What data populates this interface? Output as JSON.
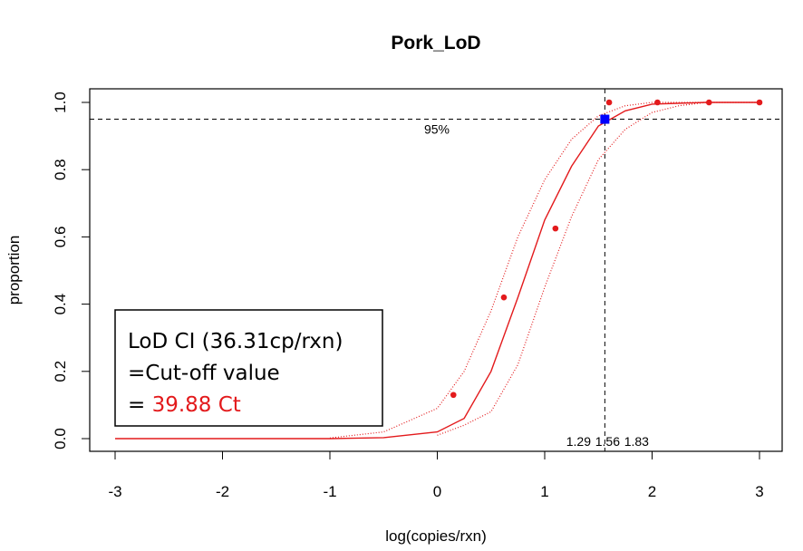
{
  "chart_data": {
    "type": "line",
    "title": "Pork_LoD",
    "xlabel": "log(copies/rxn)",
    "ylabel": "proportion",
    "xlim": [
      -3,
      3
    ],
    "ylim": [
      0,
      1
    ],
    "xticks": [
      "-3",
      "-2",
      "-1",
      "0",
      "1",
      "2",
      "3"
    ],
    "yticks": [
      "0.0",
      "0.2",
      "0.4",
      "0.6",
      "0.8",
      "1.0"
    ],
    "series": [
      {
        "style": "solid",
        "color": "#e31a1c",
        "x": [
          -3.0,
          -1.0,
          -0.5,
          0.0,
          0.25,
          0.5,
          0.75,
          1.0,
          1.25,
          1.5,
          1.75,
          2.0,
          2.5,
          3.0
        ],
        "y": [
          0.0,
          0.0,
          0.003,
          0.02,
          0.06,
          0.2,
          0.42,
          0.65,
          0.81,
          0.93,
          0.975,
          0.995,
          1.0,
          1.0
        ]
      },
      {
        "style": "dotted",
        "color": "#e31a1c",
        "x": [
          -1.0,
          -0.5,
          0.0,
          0.25,
          0.5,
          0.75,
          1.0,
          1.25,
          1.5,
          1.75,
          2.0,
          2.5,
          3.0
        ],
        "y": [
          0.002,
          0.02,
          0.09,
          0.2,
          0.38,
          0.6,
          0.77,
          0.89,
          0.96,
          0.99,
          1.0,
          1.0,
          1.0
        ]
      },
      {
        "style": "dotted",
        "color": "#e31a1c",
        "x": [
          0.0,
          0.25,
          0.5,
          0.75,
          1.0,
          1.25,
          1.5,
          1.75,
          2.0,
          2.25,
          2.5,
          3.0
        ],
        "y": [
          0.01,
          0.04,
          0.08,
          0.22,
          0.45,
          0.66,
          0.83,
          0.92,
          0.97,
          0.99,
          1.0,
          1.0
        ]
      }
    ],
    "points": {
      "color": "#e31a1c",
      "x": [
        0.15,
        0.62,
        1.1,
        1.6,
        2.05,
        2.53,
        3.0
      ],
      "y": [
        0.13,
        0.42,
        0.625,
        1.0,
        1.0,
        1.0,
        1.0
      ]
    },
    "lod_point": {
      "x": 1.56,
      "y": 0.95,
      "color": "#0000ff"
    },
    "hline": {
      "y": 0.95,
      "label": "95%"
    },
    "vline": {
      "x": 1.56
    },
    "bottom_labels": [
      {
        "x": 1.29,
        "text": "1.29"
      },
      {
        "x": 1.56,
        "text": "1.56"
      },
      {
        "x": 1.83,
        "text": "1.83"
      }
    ],
    "grid": false,
    "legend": "none"
  },
  "annotation_box": {
    "line1": "LoD CI (36.31cp/rxn)",
    "line2": "=Cut-off value",
    "line3_prefix": "= ",
    "line3_value": "39.88 Ct",
    "value_color": "#e31a1c"
  }
}
